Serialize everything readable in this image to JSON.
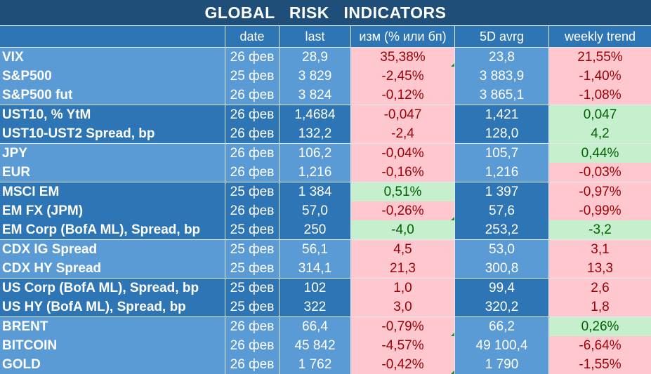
{
  "title": "GLOBAL   RISK   INDICATORS",
  "headers": [
    "",
    "date",
    "last",
    "изм (% или бп)",
    "5D avrg",
    "weekly trend"
  ],
  "rows": [
    {
      "name": "VIX",
      "date": "26 фев",
      "last": "28,9",
      "change": "35,38%",
      "avg": "23,8",
      "trend": "21,55%",
      "change_status": "neg",
      "trend_status": "neg"
    },
    {
      "name": "S&P500",
      "date": "25 фев",
      "last": "3 829",
      "change": "-2,45%",
      "avg": "3 883,9",
      "trend": "-1,40%",
      "change_status": "neg",
      "trend_status": "neg"
    },
    {
      "name": "S&P500 fut",
      "date": "26 фев",
      "last": "3 824",
      "change": "-0,12%",
      "avg": "3 865,1",
      "trend": "-1,08%",
      "change_status": "neg",
      "trend_status": "neg"
    },
    {
      "name": "UST10, % YtM",
      "date": "26 фев",
      "last": "1,4684",
      "change": "-0,047",
      "avg": "1,421",
      "trend": "0,047",
      "change_status": "neg",
      "trend_status": "pos"
    },
    {
      "name": "UST10-UST2 Spread, bp",
      "date": "26 фев",
      "last": "132,2",
      "change": "-2,4",
      "avg": "128,0",
      "trend": "4,2",
      "change_status": "neg",
      "trend_status": "pos"
    },
    {
      "name": "JPY",
      "date": "26 фев",
      "last": "106,2",
      "change": "-0,04%",
      "avg": "105,7",
      "trend": "0,44%",
      "change_status": "neg",
      "trend_status": "pos"
    },
    {
      "name": "EUR",
      "date": "26 фев",
      "last": "1,216",
      "change": "-0,16%",
      "avg": "1,216",
      "trend": "-0,03%",
      "change_status": "neg",
      "trend_status": "neg"
    },
    {
      "name": "MSCI EM",
      "date": "25 фев",
      "last": "1 384",
      "change": "0,51%",
      "avg": "1 397",
      "trend": "-0,97%",
      "change_status": "pos",
      "trend_status": "neg"
    },
    {
      "name": "EM FX (JPM)",
      "date": "26 фев",
      "last": "57,0",
      "change": "-0,26%",
      "avg": "57,6",
      "trend": "-0,99%",
      "change_status": "neg",
      "trend_status": "neg"
    },
    {
      "name": "EM Corp (BofA ML), Spread, bp",
      "date": "25 фев",
      "last": "250",
      "change": "-4,0",
      "avg": "253,2",
      "trend": "-3,2",
      "change_status": "pos",
      "trend_status": "pos"
    },
    {
      "name": "CDX IG Spread",
      "date": "25 фев",
      "last": "56,1",
      "change": "4,5",
      "avg": "53,0",
      "trend": "3,1",
      "change_status": "neg",
      "trend_status": "neg"
    },
    {
      "name": "CDX HY Spread",
      "date": "25 фев",
      "last": "314,1",
      "change": "21,3",
      "avg": "300,8",
      "trend": "13,3",
      "change_status": "neg",
      "trend_status": "neg"
    },
    {
      "name": "US Corp (BofA ML), Spread, bp",
      "date": "25 фев",
      "last": "102",
      "change": "1,0",
      "avg": "99,4",
      "trend": "2,6",
      "change_status": "neg",
      "trend_status": "neg"
    },
    {
      "name": "US HY (BofA ML), Spread, bp",
      "date": "25 фев",
      "last": "322",
      "change": "3,0",
      "avg": "320,2",
      "trend": "1,8",
      "change_status": "neg",
      "trend_status": "neg"
    },
    {
      "name": "BRENT",
      "date": "26 фев",
      "last": "66,4",
      "change": "-0,79%",
      "avg": "66,2",
      "trend": "0,26%",
      "change_status": "neg",
      "trend_status": "pos"
    },
    {
      "name": "BITCOIN",
      "date": "26 фев",
      "last": "45 842",
      "change": "-4,57%",
      "avg": "49 100,4",
      "trend": "-6,64%",
      "change_status": "neg",
      "trend_status": "neg"
    },
    {
      "name": "GOLD",
      "date": "26 фев",
      "last": "1 762",
      "change": "-0,42%",
      "avg": "1 790",
      "trend": "-1,55%",
      "change_status": "neg",
      "trend_status": "neg"
    }
  ],
  "colors": {
    "title_bg": "#1f4e79",
    "header_bg": "#2e75b6",
    "group_light": "#5b9bd5",
    "group_dark": "#2e75b6",
    "negative_fill": "#ffc7ce",
    "negative_text": "#9c0006",
    "positive_fill": "#c6efce",
    "positive_text": "#006100"
  }
}
